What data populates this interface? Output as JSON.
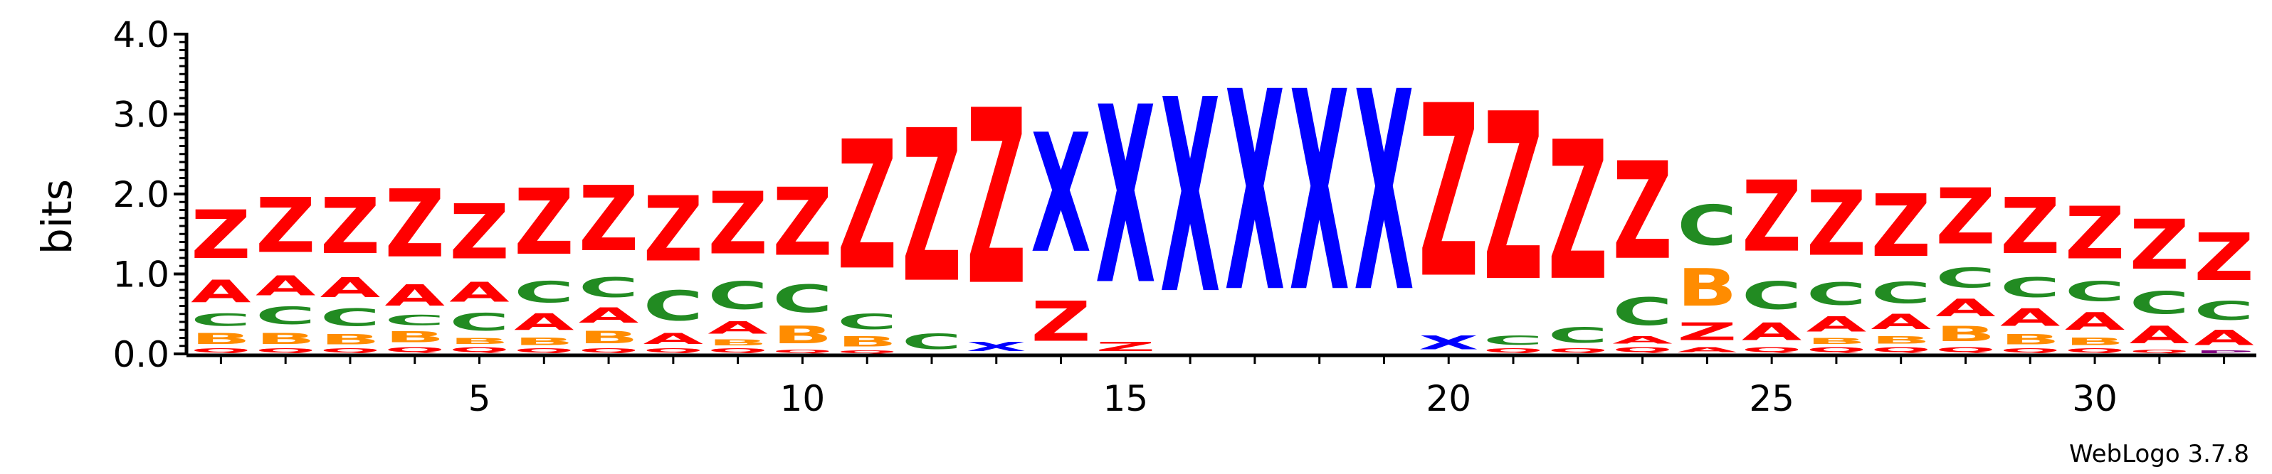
{
  "chart_data": {
    "type": "sequence-logo",
    "ylabel": "bits",
    "ylim": [
      0,
      4.0
    ],
    "y_ticks": [
      "0.0",
      "1.0",
      "2.0",
      "3.0",
      "4.0"
    ],
    "x_ticks": [
      "5",
      "10",
      "15",
      "20",
      "25",
      "30"
    ],
    "num_positions": 32,
    "software_label": "WebLogo 3.7.8",
    "colors": {
      "Z": "#ff0000",
      "X": "#0000ff",
      "C": "#228b22",
      "A": "#ff0000",
      "B": "#ff8c00",
      "Q": "#ff0000",
      "P": "#800080"
    },
    "positions": [
      {
        "pos": 1,
        "stack": [
          {
            "l": "Q",
            "h": 0.08
          },
          {
            "l": "B",
            "h": 0.22
          },
          {
            "l": "C",
            "h": 0.25
          },
          {
            "l": "A",
            "h": 0.45
          },
          {
            "l": "Z",
            "h": 0.97
          }
        ]
      },
      {
        "pos": 2,
        "stack": [
          {
            "l": "Q",
            "h": 0.08
          },
          {
            "l": "B",
            "h": 0.22
          },
          {
            "l": "C",
            "h": 0.35
          },
          {
            "l": "A",
            "h": 0.4
          },
          {
            "l": "Z",
            "h": 1.1
          }
        ]
      },
      {
        "pos": 3,
        "stack": [
          {
            "l": "Q",
            "h": 0.08
          },
          {
            "l": "B",
            "h": 0.2
          },
          {
            "l": "C",
            "h": 0.35
          },
          {
            "l": "A",
            "h": 0.4
          },
          {
            "l": "Z",
            "h": 1.12
          }
        ]
      },
      {
        "pos": 4,
        "stack": [
          {
            "l": "Q",
            "h": 0.1
          },
          {
            "l": "B",
            "h": 0.22
          },
          {
            "l": "C",
            "h": 0.2
          },
          {
            "l": "A",
            "h": 0.42
          },
          {
            "l": "Z",
            "h": 1.36
          }
        ]
      },
      {
        "pos": 5,
        "stack": [
          {
            "l": "Q",
            "h": 0.1
          },
          {
            "l": "B",
            "h": 0.12
          },
          {
            "l": "C",
            "h": 0.35
          },
          {
            "l": "A",
            "h": 0.4
          },
          {
            "l": "Z",
            "h": 1.1
          }
        ]
      },
      {
        "pos": 6,
        "stack": [
          {
            "l": "Q",
            "h": 0.08
          },
          {
            "l": "B",
            "h": 0.15
          },
          {
            "l": "A",
            "h": 0.33
          },
          {
            "l": "C",
            "h": 0.42
          },
          {
            "l": "Z",
            "h": 1.32
          }
        ]
      },
      {
        "pos": 7,
        "stack": [
          {
            "l": "Q",
            "h": 0.08
          },
          {
            "l": "B",
            "h": 0.25
          },
          {
            "l": "A",
            "h": 0.3
          },
          {
            "l": "C",
            "h": 0.4
          },
          {
            "l": "Z",
            "h": 1.3
          }
        ]
      },
      {
        "pos": 8,
        "stack": [
          {
            "l": "Q",
            "h": 0.08
          },
          {
            "l": "A",
            "h": 0.22
          },
          {
            "l": "C",
            "h": 0.6
          },
          {
            "l": "Z",
            "h": 1.3
          }
        ]
      },
      {
        "pos": 9,
        "stack": [
          {
            "l": "Q",
            "h": 0.08
          },
          {
            "l": "B",
            "h": 0.12
          },
          {
            "l": "A",
            "h": 0.25
          },
          {
            "l": "C",
            "h": 0.55
          },
          {
            "l": "Z",
            "h": 1.25
          }
        ]
      },
      {
        "pos": 10,
        "stack": [
          {
            "l": "Q",
            "h": 0.06
          },
          {
            "l": "B",
            "h": 0.35
          },
          {
            "l": "C",
            "h": 0.55
          },
          {
            "l": "Z",
            "h": 1.36
          }
        ]
      },
      {
        "pos": 11,
        "stack": [
          {
            "l": "Q",
            "h": 0.05
          },
          {
            "l": "B",
            "h": 0.2
          },
          {
            "l": "C",
            "h": 0.3
          },
          {
            "l": "Z",
            "h": 2.58
          }
        ]
      },
      {
        "pos": 12,
        "stack": [
          {
            "l": "C",
            "h": 0.3
          },
          {
            "l": "Z",
            "h": 3.05
          }
        ]
      },
      {
        "pos": 13,
        "stack": [
          {
            "l": "X",
            "h": 0.18
          },
          {
            "l": "Z",
            "h": 3.5
          }
        ]
      },
      {
        "pos": 14,
        "stack": [
          {
            "l": "Z",
            "h": 0.8
          },
          {
            "l": "X",
            "h": 2.38
          }
        ]
      },
      {
        "pos": 15,
        "stack": [
          {
            "l": "Z",
            "h": 0.18
          },
          {
            "l": "X",
            "h": 3.55
          }
        ]
      },
      {
        "pos": 16,
        "stack": [
          {
            "l": "X",
            "h": 3.88
          }
        ]
      },
      {
        "pos": 17,
        "stack": [
          {
            "l": "X",
            "h": 4.0
          }
        ]
      },
      {
        "pos": 18,
        "stack": [
          {
            "l": "X",
            "h": 4.0
          }
        ]
      },
      {
        "pos": 19,
        "stack": [
          {
            "l": "X",
            "h": 4.0
          }
        ]
      },
      {
        "pos": 20,
        "stack": [
          {
            "l": "X",
            "h": 0.28
          },
          {
            "l": "Z",
            "h": 3.45
          }
        ]
      },
      {
        "pos": 21,
        "stack": [
          {
            "l": "Q",
            "h": 0.08
          },
          {
            "l": "C",
            "h": 0.18
          },
          {
            "l": "Z",
            "h": 3.35
          }
        ]
      },
      {
        "pos": 22,
        "stack": [
          {
            "l": "Q",
            "h": 0.08
          },
          {
            "l": "C",
            "h": 0.3
          },
          {
            "l": "Z",
            "h": 2.78
          }
        ]
      },
      {
        "pos": 23,
        "stack": [
          {
            "l": "Q",
            "h": 0.1
          },
          {
            "l": "A",
            "h": 0.15
          },
          {
            "l": "C",
            "h": 0.55
          },
          {
            "l": "Z",
            "h": 1.95
          }
        ]
      },
      {
        "pos": 24,
        "stack": [
          {
            "l": "A",
            "h": 0.1
          },
          {
            "l": "Z",
            "h": 0.35
          },
          {
            "l": "B",
            "h": 0.75
          },
          {
            "l": "C",
            "h": 0.8
          }
        ]
      },
      {
        "pos": 25,
        "stack": [
          {
            "l": "Q",
            "h": 0.1
          },
          {
            "l": "A",
            "h": 0.35
          },
          {
            "l": "C",
            "h": 0.55
          },
          {
            "l": "Z",
            "h": 1.42
          }
        ]
      },
      {
        "pos": 26,
        "stack": [
          {
            "l": "Q",
            "h": 0.1
          },
          {
            "l": "B",
            "h": 0.12
          },
          {
            "l": "A",
            "h": 0.3
          },
          {
            "l": "C",
            "h": 0.45
          },
          {
            "l": "Z",
            "h": 1.3
          }
        ]
      },
      {
        "pos": 27,
        "stack": [
          {
            "l": "Q",
            "h": 0.1
          },
          {
            "l": "B",
            "h": 0.15
          },
          {
            "l": "A",
            "h": 0.3
          },
          {
            "l": "C",
            "h": 0.42
          },
          {
            "l": "Z",
            "h": 1.25
          }
        ]
      },
      {
        "pos": 28,
        "stack": [
          {
            "l": "Q",
            "h": 0.1
          },
          {
            "l": "B",
            "h": 0.3
          },
          {
            "l": "A",
            "h": 0.35
          },
          {
            "l": "C",
            "h": 0.4
          },
          {
            "l": "Z",
            "h": 1.12
          }
        ]
      },
      {
        "pos": 29,
        "stack": [
          {
            "l": "Q",
            "h": 0.08
          },
          {
            "l": "B",
            "h": 0.2
          },
          {
            "l": "A",
            "h": 0.35
          },
          {
            "l": "C",
            "h": 0.4
          },
          {
            "l": "Z",
            "h": 1.12
          }
        ]
      },
      {
        "pos": 30,
        "stack": [
          {
            "l": "Q",
            "h": 0.08
          },
          {
            "l": "B",
            "h": 0.15
          },
          {
            "l": "A",
            "h": 0.35
          },
          {
            "l": "C",
            "h": 0.4
          },
          {
            "l": "Z",
            "h": 1.05
          }
        ]
      },
      {
        "pos": 31,
        "stack": [
          {
            "l": "Q",
            "h": 0.06
          },
          {
            "l": "A",
            "h": 0.35
          },
          {
            "l": "C",
            "h": 0.45
          },
          {
            "l": "Z",
            "h": 1.0
          }
        ]
      },
      {
        "pos": 32,
        "stack": [
          {
            "l": "P",
            "h": 0.05
          },
          {
            "l": "A",
            "h": 0.3
          },
          {
            "l": "C",
            "h": 0.38
          },
          {
            "l": "Z",
            "h": 0.95
          }
        ]
      }
    ]
  }
}
